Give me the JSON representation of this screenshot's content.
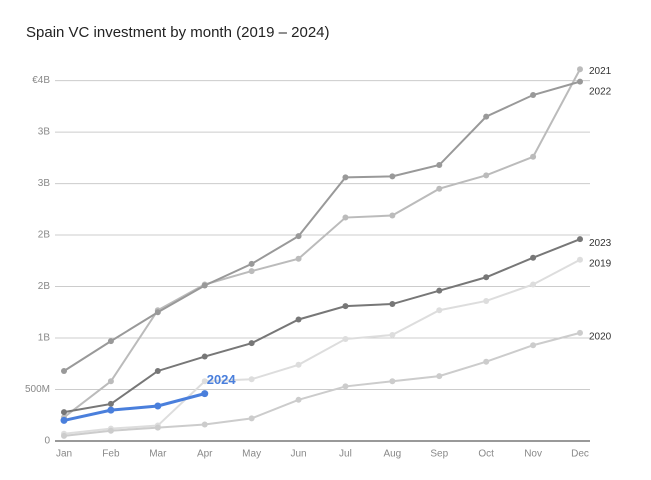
{
  "chart_data": {
    "type": "line",
    "title": "Spain VC investment by month (2019 – 2024)",
    "categories": [
      "Jan",
      "Feb",
      "Mar",
      "Apr",
      "May",
      "Jun",
      "Jul",
      "Aug",
      "Sep",
      "Oct",
      "Nov",
      "Dec"
    ],
    "series": [
      {
        "name": "2019",
        "color": "#dddddd",
        "values": [
          70,
          120,
          150,
          580,
          600,
          740,
          990,
          1030,
          1270,
          1360,
          1520,
          1760
        ]
      },
      {
        "name": "2020",
        "color": "#cccccc",
        "values": [
          50,
          100,
          130,
          160,
          220,
          400,
          530,
          580,
          630,
          770,
          930,
          1050
        ]
      },
      {
        "name": "2021",
        "color": "#bbbbbb",
        "values": [
          230,
          580,
          1270,
          1520,
          1650,
          1770,
          2170,
          2190,
          2450,
          2580,
          2760,
          3610
        ]
      },
      {
        "name": "2022",
        "color": "#999999",
        "values": [
          680,
          970,
          1250,
          1510,
          1720,
          1990,
          2560,
          2570,
          2680,
          3150,
          3360,
          3490
        ]
      },
      {
        "name": "2023",
        "color": "#777777",
        "values": [
          280,
          360,
          680,
          820,
          950,
          1180,
          1310,
          1330,
          1460,
          1590,
          1780,
          1960
        ]
      },
      {
        "name": "2024",
        "color": "#4a7fdc",
        "values": [
          200,
          300,
          340,
          460,
          null,
          null,
          null,
          null,
          null,
          null,
          null,
          null
        ]
      }
    ],
    "ylim": [
      0,
      3700
    ],
    "yticks": [
      0,
      {
        "value": 500,
        "label": "500M"
      },
      {
        "value": 1000,
        "label": "1B"
      },
      {
        "value": 1500,
        "label": "2B"
      },
      {
        "value": 2000,
        "label": "2B"
      },
      {
        "value": 2500,
        "label": "3B"
      },
      {
        "value": 3000,
        "label": "3B"
      },
      {
        "value": 3500,
        "label": "€4B"
      }
    ],
    "grid": true
  }
}
